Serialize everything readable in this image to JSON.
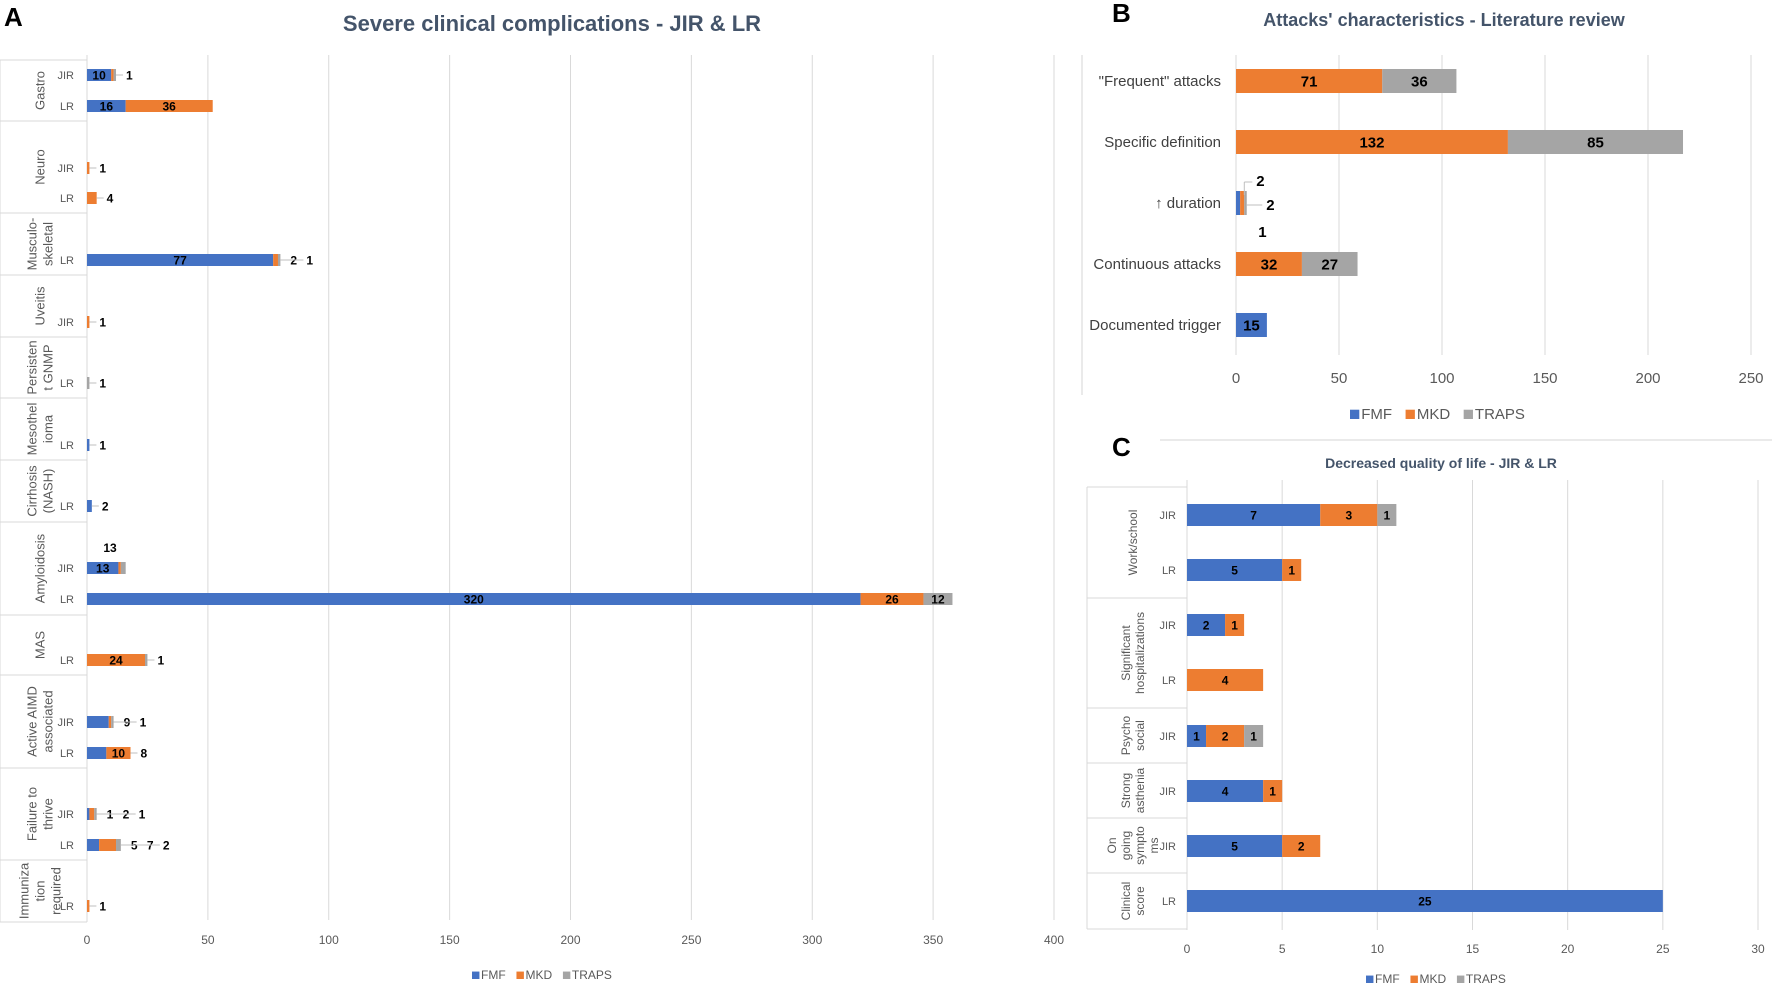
{
  "panels": {
    "a": "A",
    "b": "B",
    "c": "C"
  },
  "legend_labels": [
    "FMF",
    "MKD",
    "TRAPS"
  ],
  "colors": {
    "FMF": "#4472c4",
    "MKD": "#ed7d31",
    "TRAPS": "#a5a5a5",
    "title": "#44546a",
    "grid": "#d9d9d9"
  },
  "chart_data": [
    {
      "id": "A",
      "type": "bar",
      "orientation": "horizontal",
      "stacked": true,
      "title": "Severe clinical complications - JIR & LR",
      "series_names": [
        "FMF",
        "MKD",
        "TRAPS"
      ],
      "xlim": [
        0,
        400
      ],
      "xticks": [
        0,
        50,
        100,
        150,
        200,
        250,
        300,
        350,
        400
      ],
      "groups": [
        {
          "label": [
            "Gastro"
          ],
          "rows": [
            {
              "label": "JIR",
              "values": [
                10,
                1,
                1
              ],
              "labels": [
                "10",
                "",
                "1"
              ]
            },
            {
              "label": "LR",
              "values": [
                16,
                36,
                0
              ],
              "labels": [
                "16",
                "36",
                ""
              ]
            }
          ]
        },
        {
          "label": [
            "Neuro"
          ],
          "rows": [
            {
              "label": "JIR",
              "values": [
                0,
                1,
                0
              ],
              "labels": [
                "",
                "1",
                ""
              ]
            },
            {
              "label": "LR",
              "values": [
                0,
                4,
                0
              ],
              "labels": [
                "",
                "4",
                ""
              ]
            }
          ]
        },
        {
          "label": [
            "Musculo-",
            "skeletal"
          ],
          "rows": [
            {
              "label": "LR",
              "values": [
                77,
                2,
                1
              ],
              "labels": [
                "77",
                "2",
                "1"
              ]
            }
          ]
        },
        {
          "label": [
            "Uveitis"
          ],
          "rows": [
            {
              "label": "JIR",
              "values": [
                0,
                1,
                0
              ],
              "labels": [
                "",
                "1",
                ""
              ]
            }
          ]
        },
        {
          "label": [
            "Persisten",
            "t GNMP"
          ],
          "rows": [
            {
              "label": "LR",
              "values": [
                0,
                0,
                1
              ],
              "labels": [
                "",
                "",
                "1"
              ]
            }
          ]
        },
        {
          "label": [
            "Mesothel",
            "ioma"
          ],
          "rows": [
            {
              "label": "LR",
              "values": [
                1,
                0,
                0
              ],
              "labels": [
                "1",
                "",
                ""
              ]
            }
          ]
        },
        {
          "label": [
            "Cirrhosis",
            "(NASH)"
          ],
          "rows": [
            {
              "label": "LR",
              "values": [
                2,
                0,
                0
              ],
              "labels": [
                "2",
                "",
                ""
              ]
            }
          ]
        },
        {
          "label": [
            "Amyloidosis"
          ],
          "rows": [
            {
              "label": "JIR",
              "values": [
                13,
                1,
                2
              ],
              "labels": [
                "13",
                "",
                ""
              ]
            },
            {
              "label": "LR",
              "values": [
                320,
                26,
                12
              ],
              "labels": [
                "320",
                "26",
                "12"
              ]
            }
          ]
        },
        {
          "label": [
            "MAS"
          ],
          "rows": [
            {
              "label": "LR",
              "values": [
                0,
                24,
                1
              ],
              "labels": [
                "",
                "24",
                "1"
              ]
            }
          ]
        },
        {
          "label": [
            "Active AIMD",
            "associated"
          ],
          "rows": [
            {
              "label": "JIR",
              "values": [
                9,
                1,
                1
              ],
              "labels": [
                "9",
                "",
                "1"
              ]
            },
            {
              "label": "LR",
              "values": [
                8,
                10,
                0
              ],
              "labels": [
                "8",
                "10",
                ""
              ]
            }
          ]
        },
        {
          "label": [
            "Failure to",
            "thrive"
          ],
          "rows": [
            {
              "label": "JIR",
              "values": [
                1,
                2,
                1
              ],
              "labels": [
                "1",
                "2",
                "1"
              ]
            },
            {
              "label": "LR",
              "values": [
                5,
                7,
                2
              ],
              "labels": [
                "5",
                "7",
                "2"
              ]
            }
          ]
        },
        {
          "label": [
            "Immuniza",
            "tion",
            "required"
          ],
          "rows": [
            {
              "label": "LR",
              "values": [
                0,
                1,
                0
              ],
              "labels": [
                "",
                "1",
                ""
              ]
            }
          ]
        }
      ]
    },
    {
      "id": "B",
      "type": "bar",
      "orientation": "horizontal",
      "stacked": true,
      "title": "Attacks' characteristics - Literature review",
      "series_names": [
        "FMF",
        "MKD",
        "TRAPS"
      ],
      "xlim": [
        0,
        250
      ],
      "xticks": [
        0,
        50,
        100,
        150,
        200,
        250
      ],
      "categories": [
        "\"Frequent\" attacks",
        "Specific definition",
        "↑ duration",
        "Continuous attacks",
        "Documented trigger"
      ],
      "series": [
        {
          "name": "FMF",
          "values": [
            0,
            0,
            2,
            0,
            15
          ],
          "labels": [
            "",
            "",
            "2",
            "",
            "15"
          ]
        },
        {
          "name": "MKD",
          "values": [
            71,
            132,
            2,
            32,
            0
          ],
          "labels": [
            "71",
            "132",
            "2",
            "32",
            ""
          ]
        },
        {
          "name": "TRAPS",
          "values": [
            36,
            85,
            1,
            27,
            0
          ],
          "labels": [
            "36",
            "85",
            "1",
            "27",
            ""
          ]
        }
      ]
    },
    {
      "id": "C",
      "type": "bar",
      "orientation": "horizontal",
      "stacked": true,
      "title": "Decreased quality of life - JIR & LR",
      "series_names": [
        "FMF",
        "MKD",
        "TRAPS"
      ],
      "xlim": [
        0,
        30
      ],
      "xticks": [
        0,
        5,
        10,
        15,
        20,
        25,
        30
      ],
      "groups": [
        {
          "label": [
            "Work/school"
          ],
          "rows": [
            {
              "label": "JIR",
              "values": [
                7,
                3,
                1
              ],
              "labels": [
                "7",
                "3",
                "1"
              ]
            },
            {
              "label": "LR",
              "values": [
                5,
                1,
                0
              ],
              "labels": [
                "5",
                "1",
                ""
              ]
            }
          ]
        },
        {
          "label": [
            "Significant",
            "hospitalizations"
          ],
          "rows": [
            {
              "label": "JIR",
              "values": [
                2,
                1,
                0
              ],
              "labels": [
                "2",
                "1",
                ""
              ]
            },
            {
              "label": "LR",
              "values": [
                0,
                4,
                0
              ],
              "labels": [
                "",
                "4",
                ""
              ]
            }
          ]
        },
        {
          "label": [
            "Psycho",
            "social"
          ],
          "rows": [
            {
              "label": "JIR",
              "values": [
                1,
                2,
                1
              ],
              "labels": [
                "1",
                "2",
                "1"
              ]
            }
          ]
        },
        {
          "label": [
            "Strong",
            "asthenia"
          ],
          "rows": [
            {
              "label": "JIR",
              "values": [
                4,
                1,
                0
              ],
              "labels": [
                "4",
                "1",
                ""
              ]
            }
          ]
        },
        {
          "label": [
            "On",
            "going",
            "sympto",
            "ms"
          ],
          "rows": [
            {
              "label": "JIR",
              "values": [
                5,
                2,
                0
              ],
              "labels": [
                "5",
                "2",
                ""
              ]
            }
          ]
        },
        {
          "label": [
            "Clinical",
            "score"
          ],
          "rows": [
            {
              "label": "LR",
              "values": [
                25,
                0,
                0
              ],
              "labels": [
                "25",
                "",
                ""
              ]
            }
          ]
        }
      ]
    }
  ]
}
